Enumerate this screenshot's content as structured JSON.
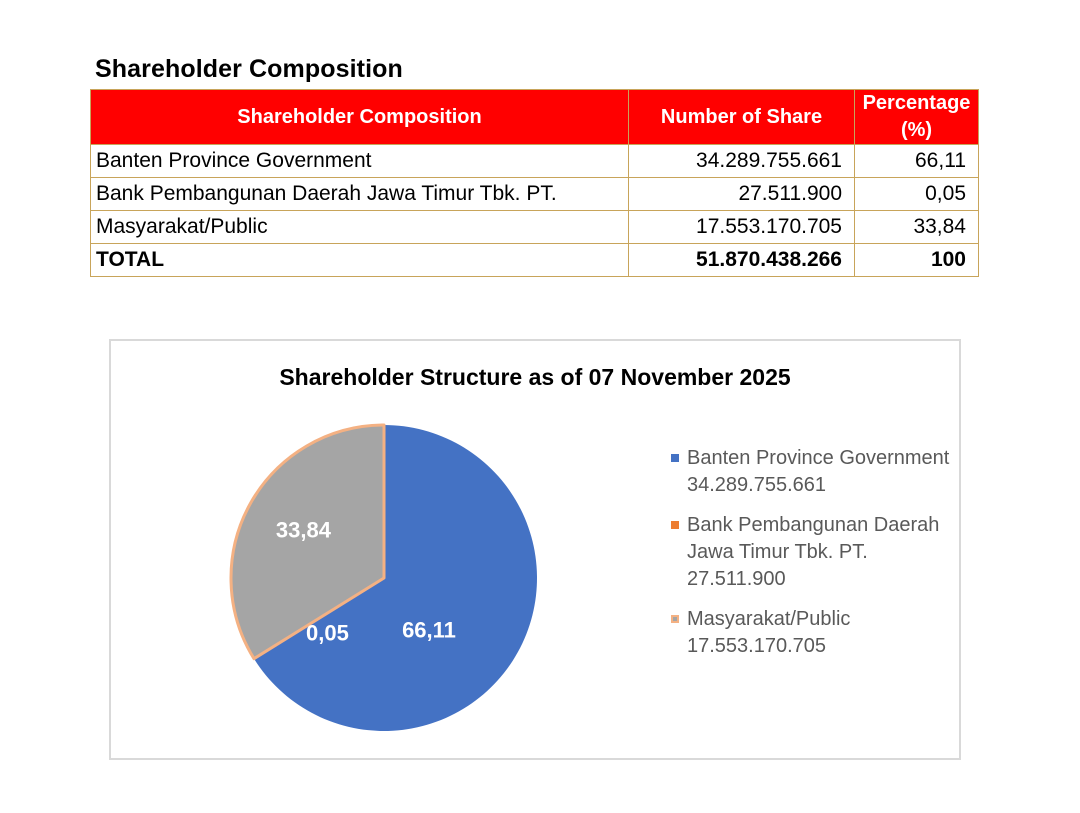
{
  "heading": "Shareholder Composition",
  "table": {
    "headers": [
      "Shareholder Composition",
      "Number of Share",
      "Percentage (%)"
    ],
    "rows": [
      {
        "name": "Banten Province Government",
        "shares": "34.289.755.661",
        "pct": "66,11"
      },
      {
        "name": "Bank Pembangunan Daerah Jawa Timur Tbk. PT.",
        "shares": "27.511.900",
        "pct": "0,05"
      },
      {
        "name": "Masyarakat/Public",
        "shares": "17.553.170.705",
        "pct": "33,84"
      }
    ],
    "total": {
      "name": "TOTAL",
      "shares": "51.870.438.266",
      "pct": "100"
    }
  },
  "chart_data": {
    "type": "pie",
    "title": "Shareholder Structure as of 07 November 2025",
    "slices": [
      {
        "name": "Banten Province Government",
        "shares": "34.289.755.661",
        "value": 66.11,
        "label": "66,11",
        "color": "#4472c4"
      },
      {
        "name": "Bank Pembangunan Daerah Jawa Timur Tbk. PT.",
        "shares": "27.511.900",
        "value": 0.05,
        "label": "0,05",
        "color": "#ed7d31"
      },
      {
        "name": "Masyarakat/Public",
        "shares": "17.553.170.705",
        "value": 33.84,
        "label": "33,84",
        "color": "#a5a5a5"
      }
    ],
    "border_color": "#f4b183",
    "legend_position": "right"
  }
}
